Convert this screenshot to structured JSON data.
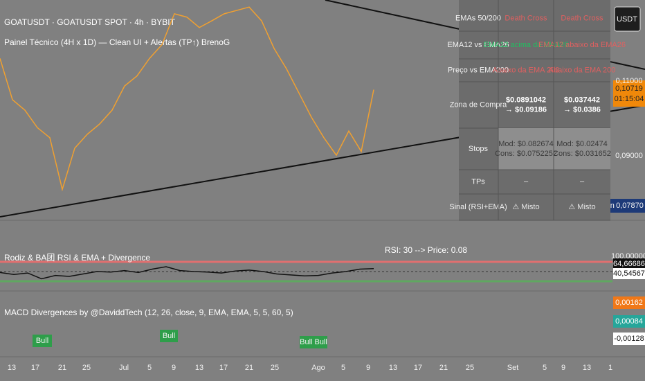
{
  "header": {
    "symbol": "GOATUSDT · GOATUSDT SPOT · 4h · BYBIT",
    "indicator": "Painel Técnico (4H x 1D) — Clean UI + Alertas (TP↑) BrenoG"
  },
  "table": {
    "rows": [
      {
        "label": "EMAs 50/200",
        "cells": [
          [
            "Death Cross"
          ],
          [
            "Death Cross"
          ]
        ]
      },
      {
        "label": "EMA12 vs EMA26",
        "cells": [
          [
            "EMA12 acima da EMA26"
          ],
          [
            "EMA12 abaixo da EMA26"
          ]
        ]
      },
      {
        "label": "Preço vs EMA200",
        "cells": [
          [
            "Abaixo da EMA 200"
          ],
          [
            "Abaixo da EMA 200"
          ]
        ]
      },
      {
        "label": "Zona de Compra",
        "cells": [
          [
            "$0.0891042",
            "→ $0.09186"
          ],
          [
            "$0.037442",
            "→ $0.0386"
          ]
        ]
      },
      {
        "label": "Stops",
        "cells": [
          [
            "Mod: $0.082674",
            "Cons: $0.0752252"
          ],
          [
            "Mod: $0.02474",
            "Cons: $0.031652"
          ]
        ]
      },
      {
        "label": "TPs",
        "cells": [
          [
            "–"
          ],
          [
            "–"
          ]
        ]
      },
      {
        "label": "Sinal (RSI+EMA)",
        "cells": [
          [
            "⚠ Misto"
          ],
          [
            "⚠ Misto"
          ]
        ]
      }
    ]
  },
  "price_axis": {
    "currency": "USDT",
    "labels": [
      "0,11000",
      "0,09000"
    ],
    "last_price": "0,10719",
    "countdown": "01:15:04",
    "min_label": "Min",
    "min_price": "0,07870"
  },
  "price": {
    "ylim": [
      0.074,
      0.1317
    ],
    "values": [
      0.116,
      0.1049,
      0.1021,
      0.0974,
      0.0947,
      0.0808,
      0.0919,
      0.0956,
      0.0984,
      0.1021,
      0.1086,
      0.1113,
      0.116,
      0.1197,
      0.128,
      0.1271,
      0.1243,
      0.1261,
      0.128,
      0.1289,
      0.1298,
      0.1261,
      0.1187,
      0.1132,
      0.1067,
      0.1002,
      0.0947,
      0.09,
      0.0965,
      0.091,
      0.1076
    ]
  },
  "rsi": {
    "title": "Rodiz & BA团 RSI & EMA + Divergence",
    "note": "RSI: 30 --> Price: 0.08",
    "ylim": [
      0,
      100
    ],
    "values": [
      48,
      44,
      47,
      35,
      42,
      40,
      45,
      50,
      49,
      52,
      48,
      55,
      60,
      52,
      50,
      49,
      47,
      51,
      53,
      50,
      45,
      43,
      41,
      42,
      47,
      50,
      55,
      56
    ],
    "axis_labels": [
      "100,00000",
      "64,66686",
      "40,54567"
    ]
  },
  "macd": {
    "title": "MACD Divergences by @DaviddTech (12, 26, close, 9, EMA, EMA, 5, 5, 60, 5)",
    "signals": [
      "Bull",
      "Bull",
      "Bull Bull"
    ],
    "axis_labels": [
      "0,00162",
      "0,00084",
      "-0,00128"
    ]
  },
  "x_axis": {
    "labels": [
      "13",
      "17",
      "21",
      "25",
      "Jul",
      "5",
      "9",
      "13",
      "17",
      "21",
      "25",
      "Ago",
      "5",
      "9",
      "13",
      "17",
      "21",
      "25",
      "Set",
      "5",
      "9",
      "13",
      "1"
    ]
  }
}
